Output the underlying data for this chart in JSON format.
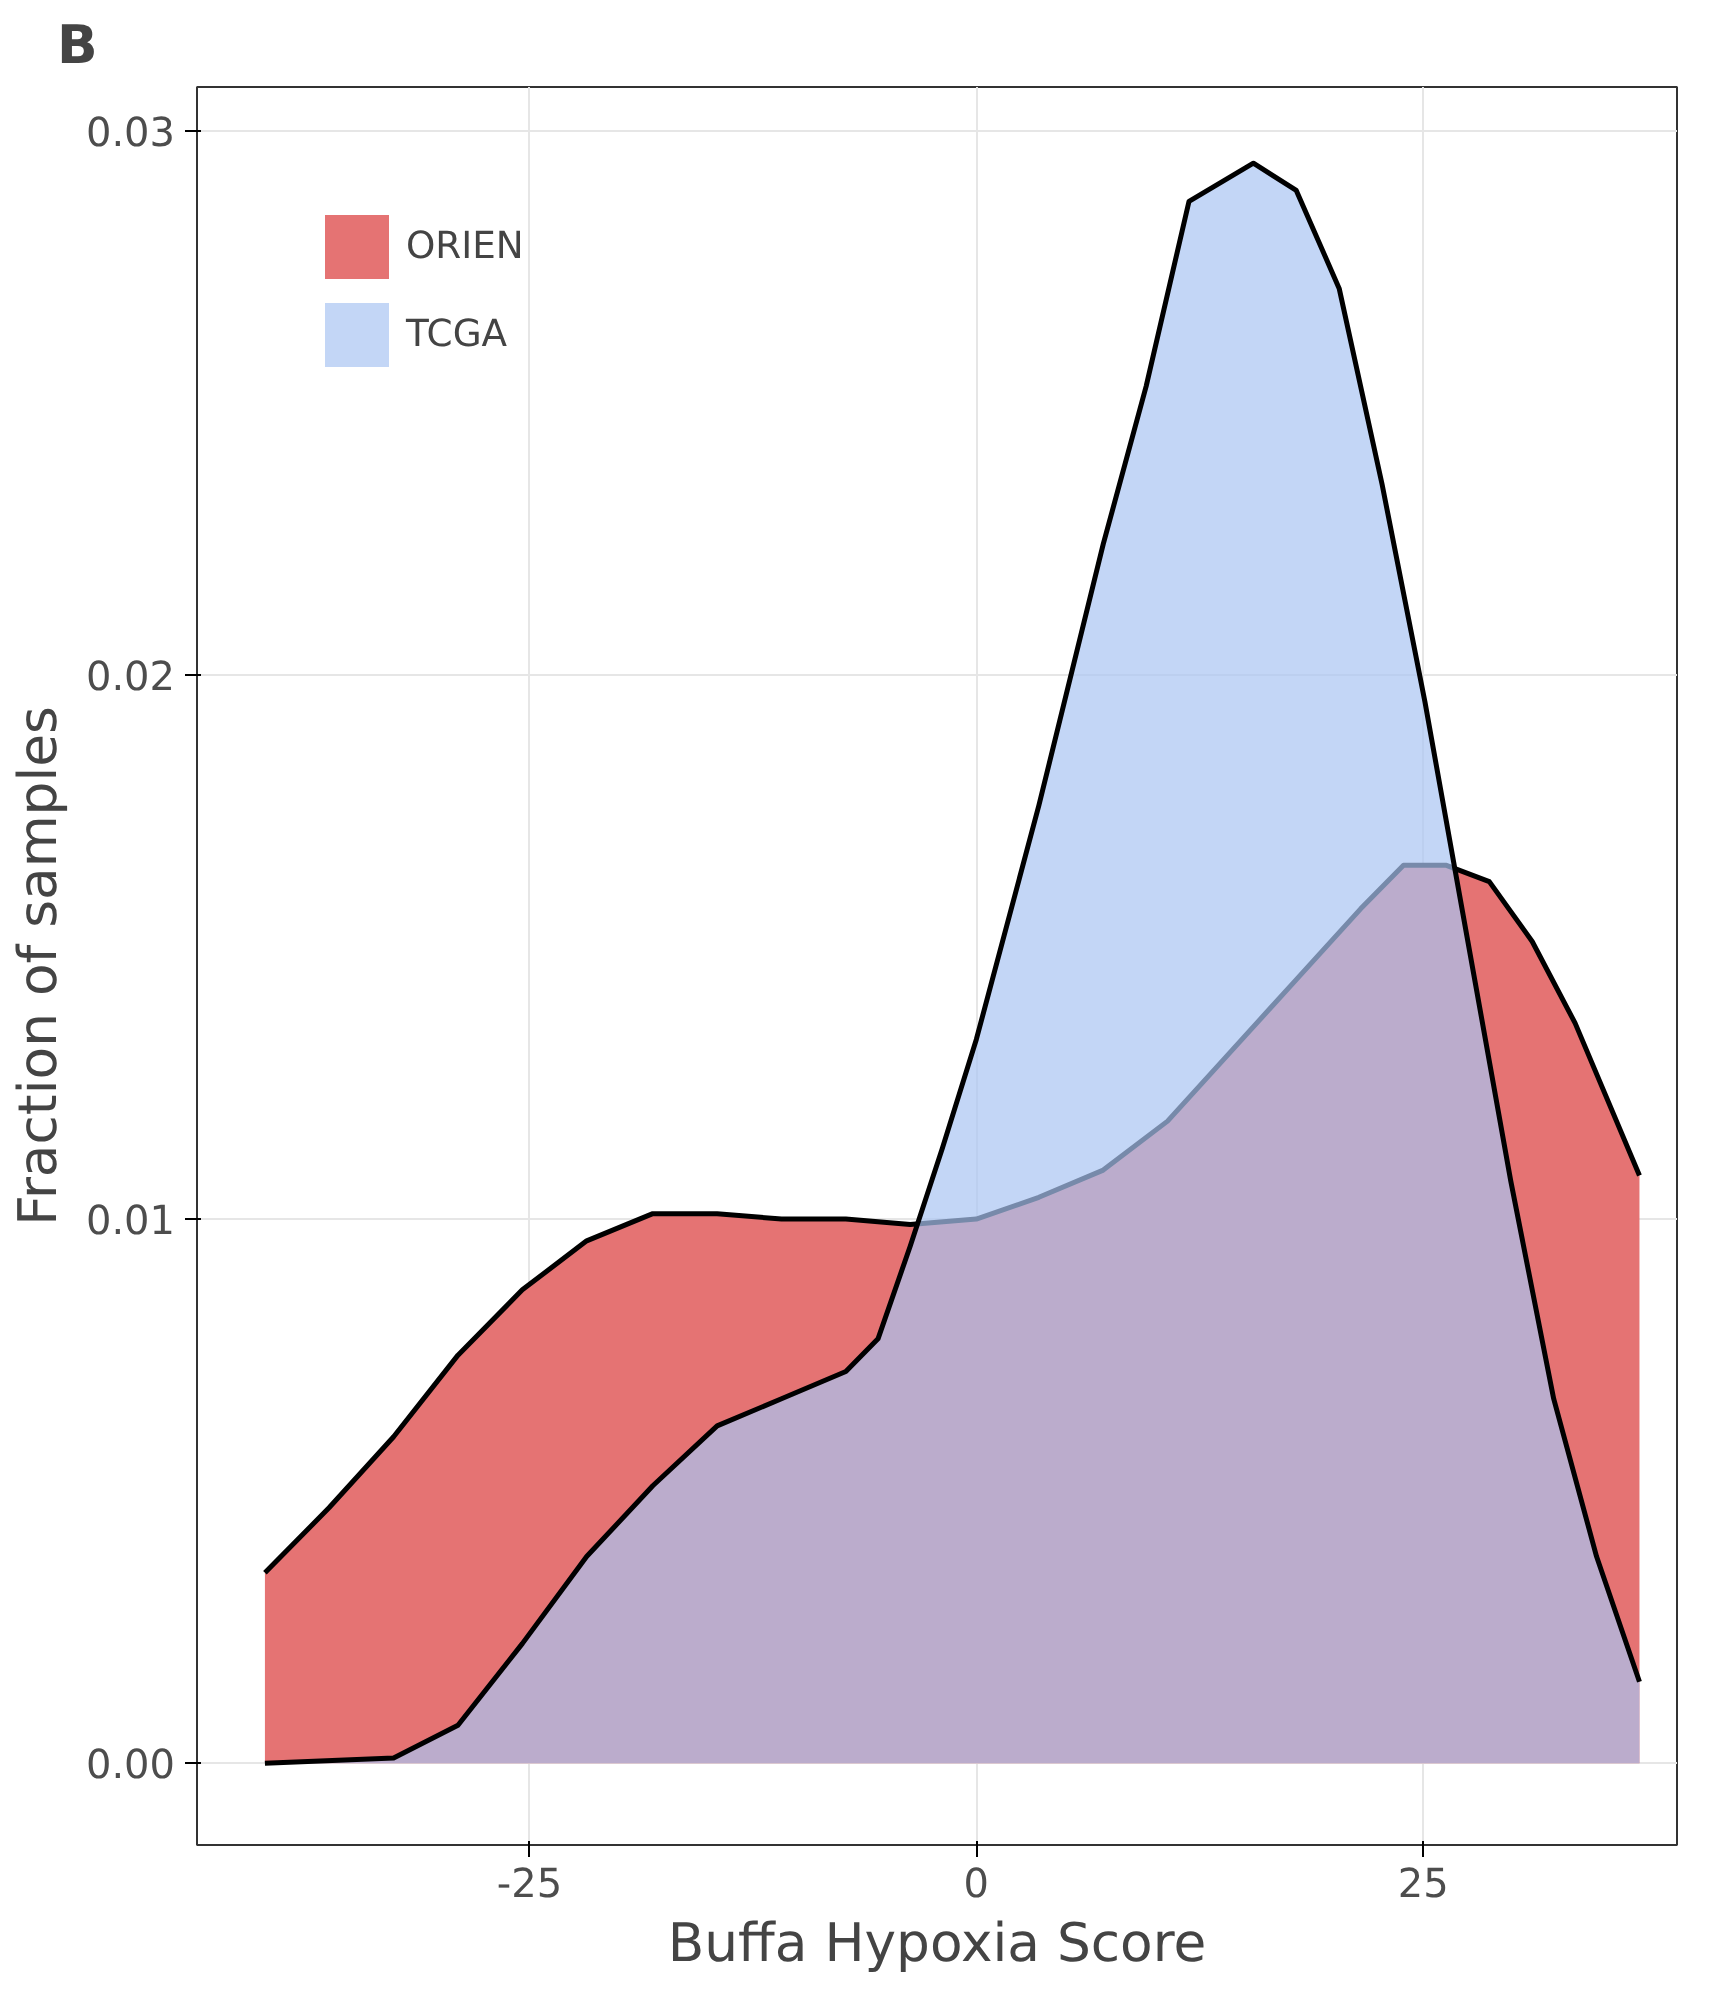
{
  "chart_data": {
    "type": "area",
    "xlabel": "Buffa Hypoxia Score",
    "ylabel": "Fraction of samples",
    "annotations": [
      "B"
    ],
    "xlim": [
      -43.6,
      39.2
    ],
    "ylim": [
      -0.0015,
      0.0308
    ],
    "xticks": [
      -25,
      0,
      25
    ],
    "yticks": [
      {
        "value": 0,
        "label": "0.00"
      },
      {
        "value": 0.01,
        "label": "0.01"
      },
      {
        "value": 0.02,
        "label": "0.02"
      },
      {
        "value": 0.03,
        "label": "0.03"
      }
    ],
    "grid": true,
    "legend": "top left",
    "series": [
      {
        "name": "ORIEN",
        "color": "#e57373",
        "x": [
          -39.8,
          -36.2,
          -32.6,
          -29,
          -25.4,
          -21.8,
          -18.1,
          -14.5,
          -10.9,
          -7.3,
          -3.7,
          0,
          3.5,
          7.1,
          10.7,
          14.3,
          17.9,
          21.5,
          23.9,
          26.3,
          28.7,
          31.1,
          33.5,
          37.1
        ],
        "values": [
          0.0035,
          0.0047,
          0.006,
          0.0075,
          0.0087,
          0.0096,
          0.0101,
          0.0101,
          0.01,
          0.01,
          0.0099,
          0.01,
          0.0104,
          0.0109,
          0.0118,
          0.0131,
          0.0144,
          0.0157,
          0.0165,
          0.0165,
          0.0162,
          0.0151,
          0.0136,
          0.0108
        ]
      },
      {
        "name": "TCGA",
        "color": "#a9c4f2",
        "x": [
          -39.8,
          -32.6,
          -29,
          -25.4,
          -21.8,
          -18.1,
          -14.5,
          -10.9,
          -7.3,
          -5.5,
          -3.7,
          -1.9,
          0,
          3.5,
          7.1,
          9.5,
          11.9,
          15.5,
          17.9,
          20.3,
          22.7,
          25.1,
          27.5,
          29.9,
          32.3,
          34.7,
          37.1
        ],
        "values": [
          0,
          0.0001,
          0.0007,
          0.0022,
          0.0038,
          0.0051,
          0.0062,
          0.0067,
          0.0072,
          0.0078,
          0.0095,
          0.0113,
          0.0133,
          0.0176,
          0.0224,
          0.0253,
          0.0287,
          0.0294,
          0.0289,
          0.0271,
          0.0235,
          0.0195,
          0.0151,
          0.0107,
          0.0067,
          0.0038,
          0.0015
        ]
      }
    ]
  }
}
